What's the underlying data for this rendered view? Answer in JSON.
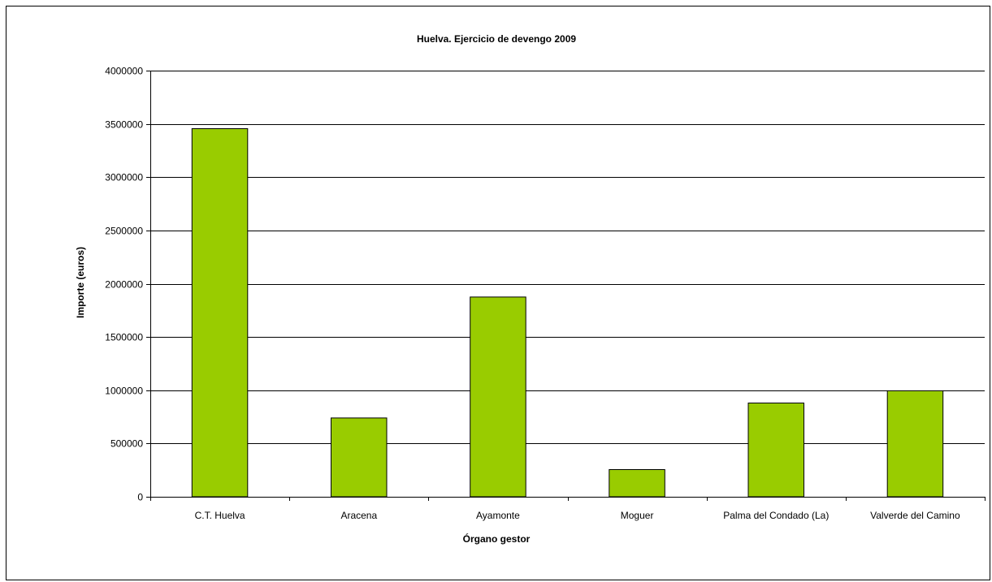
{
  "chart_data": {
    "type": "bar",
    "title": "Huelva. Ejercicio de devengo 2009",
    "xlabel": "Órgano gestor",
    "ylabel": "Importe (euros)",
    "categories": [
      "C.T. Huelva",
      "Aracena",
      "Ayamonte",
      "Moguer",
      "Palma del Condado (La)",
      "Valverde del Camino"
    ],
    "series": [
      {
        "values": [
          3455000,
          740000,
          1875000,
          255000,
          880000,
          995000
        ]
      }
    ],
    "ylim": [
      0,
      4000000
    ],
    "yticks": [
      "0",
      "500000",
      "1000000",
      "1500000",
      "2000000",
      "2500000",
      "3000000",
      "3500000",
      "4000000"
    ],
    "grid": true,
    "legend": "none",
    "colors": {
      "bar_fill": "#99CC00",
      "bar_stroke": "#000000",
      "grid": "#000000",
      "background": "#FFFFFF"
    }
  }
}
